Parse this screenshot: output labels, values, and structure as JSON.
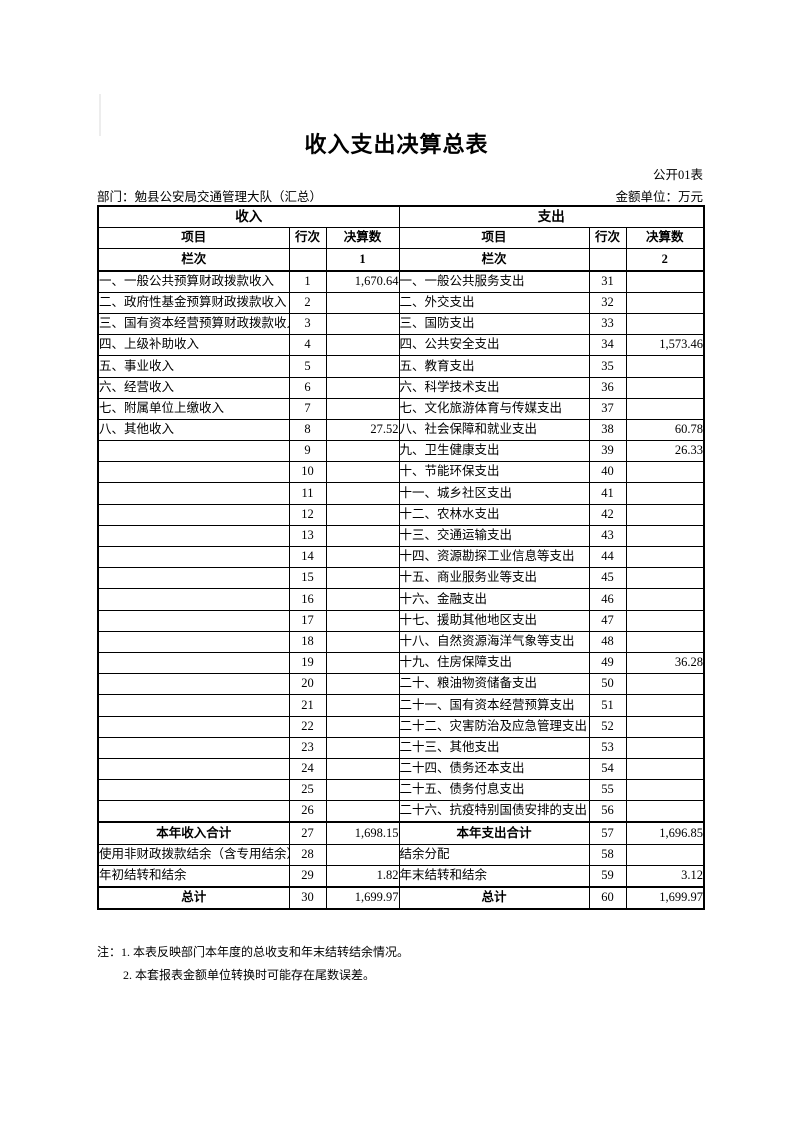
{
  "page": {
    "title": "收入支出决算总表",
    "form_code": "公开01表",
    "department_line": "部门：勉县公安局交通管理大队（汇总）",
    "unit_line": "金额单位：万元",
    "notes": {
      "note1": "注：1. 本表反映部门本年度的总收支和年末结转结余情况。",
      "note2": "2. 本套报表金额单位转换时可能存在尾数误差。"
    }
  },
  "table": {
    "income_header": "收入",
    "expense_header": "支出",
    "col_headers": {
      "item": "项目",
      "line": "行次",
      "amount": "决算数"
    },
    "column_row": {
      "label": "栏次",
      "income_col": "1",
      "expense_col": "2"
    },
    "rows": [
      {
        "income": {
          "item": "一、一般公共预算财政拨款收入",
          "line": "1",
          "amount": "1,670.64"
        },
        "expense": {
          "item": "一、一般公共服务支出",
          "line": "31",
          "amount": ""
        }
      },
      {
        "income": {
          "item": "二、政府性基金预算财政拨款收入",
          "line": "2",
          "amount": ""
        },
        "expense": {
          "item": "二、外交支出",
          "line": "32",
          "amount": ""
        }
      },
      {
        "income": {
          "item": "三、国有资本经营预算财政拨款收入",
          "line": "3",
          "amount": ""
        },
        "expense": {
          "item": "三、国防支出",
          "line": "33",
          "amount": ""
        }
      },
      {
        "income": {
          "item": "四、上级补助收入",
          "line": "4",
          "amount": ""
        },
        "expense": {
          "item": "四、公共安全支出",
          "line": "34",
          "amount": "1,573.46"
        }
      },
      {
        "income": {
          "item": "五、事业收入",
          "line": "5",
          "amount": ""
        },
        "expense": {
          "item": "五、教育支出",
          "line": "35",
          "amount": ""
        }
      },
      {
        "income": {
          "item": "六、经营收入",
          "line": "6",
          "amount": ""
        },
        "expense": {
          "item": "六、科学技术支出",
          "line": "36",
          "amount": ""
        }
      },
      {
        "income": {
          "item": "七、附属单位上缴收入",
          "line": "7",
          "amount": ""
        },
        "expense": {
          "item": "七、文化旅游体育与传媒支出",
          "line": "37",
          "amount": ""
        }
      },
      {
        "income": {
          "item": "八、其他收入",
          "line": "8",
          "amount": "27.52"
        },
        "expense": {
          "item": "八、社会保障和就业支出",
          "line": "38",
          "amount": "60.78"
        }
      },
      {
        "income": {
          "item": "",
          "line": "9",
          "amount": ""
        },
        "expense": {
          "item": "九、卫生健康支出",
          "line": "39",
          "amount": "26.33"
        }
      },
      {
        "income": {
          "item": "",
          "line": "10",
          "amount": ""
        },
        "expense": {
          "item": "十、节能环保支出",
          "line": "40",
          "amount": ""
        }
      },
      {
        "income": {
          "item": "",
          "line": "11",
          "amount": ""
        },
        "expense": {
          "item": "十一、城乡社区支出",
          "line": "41",
          "amount": ""
        }
      },
      {
        "income": {
          "item": "",
          "line": "12",
          "amount": ""
        },
        "expense": {
          "item": "十二、农林水支出",
          "line": "42",
          "amount": ""
        }
      },
      {
        "income": {
          "item": "",
          "line": "13",
          "amount": ""
        },
        "expense": {
          "item": "十三、交通运输支出",
          "line": "43",
          "amount": ""
        }
      },
      {
        "income": {
          "item": "",
          "line": "14",
          "amount": ""
        },
        "expense": {
          "item": "十四、资源勘探工业信息等支出",
          "line": "44",
          "amount": ""
        }
      },
      {
        "income": {
          "item": "",
          "line": "15",
          "amount": ""
        },
        "expense": {
          "item": "十五、商业服务业等支出",
          "line": "45",
          "amount": ""
        }
      },
      {
        "income": {
          "item": "",
          "line": "16",
          "amount": ""
        },
        "expense": {
          "item": "十六、金融支出",
          "line": "46",
          "amount": ""
        }
      },
      {
        "income": {
          "item": "",
          "line": "17",
          "amount": ""
        },
        "expense": {
          "item": "十七、援助其他地区支出",
          "line": "47",
          "amount": ""
        }
      },
      {
        "income": {
          "item": "",
          "line": "18",
          "amount": ""
        },
        "expense": {
          "item": "十八、自然资源海洋气象等支出",
          "line": "48",
          "amount": ""
        }
      },
      {
        "income": {
          "item": "",
          "line": "19",
          "amount": ""
        },
        "expense": {
          "item": "十九、住房保障支出",
          "line": "49",
          "amount": "36.28"
        }
      },
      {
        "income": {
          "item": "",
          "line": "20",
          "amount": ""
        },
        "expense": {
          "item": "二十、粮油物资储备支出",
          "line": "50",
          "amount": ""
        }
      },
      {
        "income": {
          "item": "",
          "line": "21",
          "amount": ""
        },
        "expense": {
          "item": "二十一、国有资本经营预算支出",
          "line": "51",
          "amount": ""
        }
      },
      {
        "income": {
          "item": "",
          "line": "22",
          "amount": ""
        },
        "expense": {
          "item": "二十二、灾害防治及应急管理支出",
          "line": "52",
          "amount": ""
        }
      },
      {
        "income": {
          "item": "",
          "line": "23",
          "amount": ""
        },
        "expense": {
          "item": "二十三、其他支出",
          "line": "53",
          "amount": ""
        }
      },
      {
        "income": {
          "item": "",
          "line": "24",
          "amount": ""
        },
        "expense": {
          "item": "二十四、债务还本支出",
          "line": "54",
          "amount": ""
        }
      },
      {
        "income": {
          "item": "",
          "line": "25",
          "amount": ""
        },
        "expense": {
          "item": "二十五、债务付息支出",
          "line": "55",
          "amount": ""
        }
      },
      {
        "income": {
          "item": "",
          "line": "26",
          "amount": ""
        },
        "expense": {
          "item": "二十六、抗疫特别国债安排的支出",
          "line": "56",
          "amount": ""
        }
      },
      {
        "thick_top": true,
        "income": {
          "item": "本年收入合计",
          "line": "27",
          "amount": "1,698.15",
          "emphasis": true
        },
        "expense": {
          "item": "本年支出合计",
          "line": "57",
          "amount": "1,696.85",
          "emphasis": true
        }
      },
      {
        "income": {
          "item": "使用非财政拨款结余（含专用结余）",
          "line": "28",
          "amount": ""
        },
        "expense": {
          "item": "结余分配",
          "line": "58",
          "amount": ""
        }
      },
      {
        "income": {
          "item": "年初结转和结余",
          "line": "29",
          "amount": "1.82"
        },
        "expense": {
          "item": "年末结转和结余",
          "line": "59",
          "amount": "3.12"
        }
      },
      {
        "thick_top": true,
        "income": {
          "item": "总计",
          "line": "30",
          "amount": "1,699.97",
          "emphasis": true
        },
        "expense": {
          "item": "总计",
          "line": "60",
          "amount": "1,699.97",
          "emphasis": true
        }
      }
    ]
  }
}
